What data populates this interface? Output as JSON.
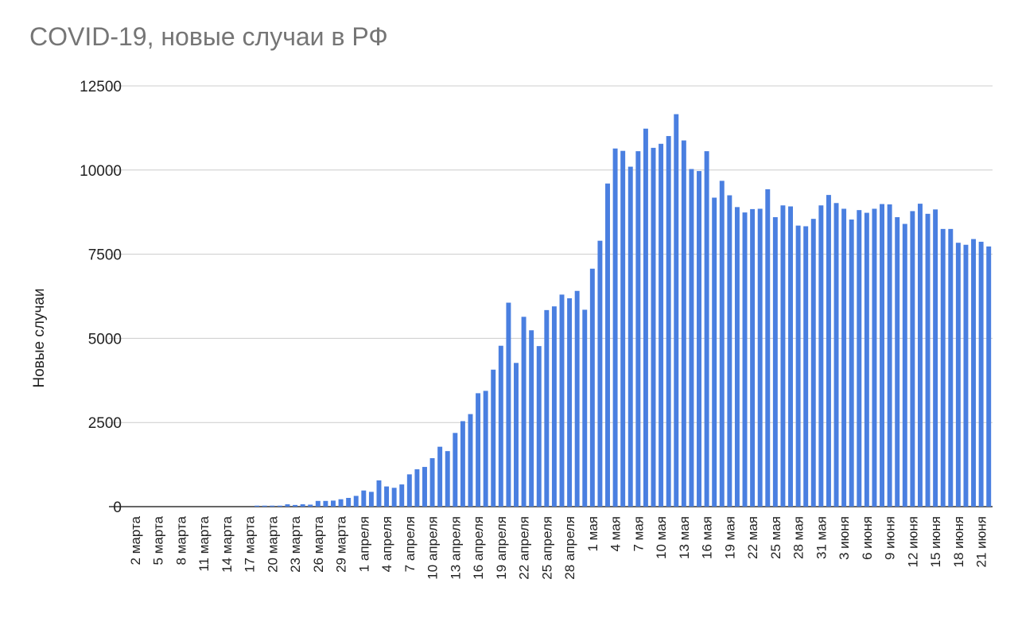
{
  "chart_data": {
    "type": "bar",
    "title": "COVID-19, новые случаи в РФ",
    "xlabel": "",
    "ylabel": "Новые случаи",
    "ylim": [
      0,
      12500
    ],
    "yticks": [
      0,
      2500,
      5000,
      7500,
      10000,
      12500
    ],
    "grid": true,
    "bar_color": "#4a7fe0",
    "categories": [
      "2 марта",
      "3 марта",
      "4 марта",
      "5 марта",
      "6 марта",
      "7 марта",
      "8 марта",
      "9 марта",
      "10 марта",
      "11 марта",
      "12 марта",
      "13 марта",
      "14 марта",
      "15 марта",
      "16 марта",
      "17 марта",
      "18 марта",
      "19 марта",
      "20 марта",
      "21 марта",
      "22 марта",
      "23 марта",
      "24 марта",
      "25 марта",
      "26 марта",
      "27 марта",
      "28 марта",
      "29 марта",
      "30 марта",
      "31 марта",
      "1 апреля",
      "2 апреля",
      "3 апреля",
      "4 апреля",
      "5 апреля",
      "6 апреля",
      "7 апреля",
      "8 апреля",
      "9 апреля",
      "10 апреля",
      "11 апреля",
      "12 апреля",
      "13 апреля",
      "14 апреля",
      "15 апреля",
      "16 апреля",
      "17 апреля",
      "18 апреля",
      "19 апреля",
      "20 апреля",
      "21 апреля",
      "22 апреля",
      "23 апреля",
      "24 апреля",
      "25 апреля",
      "26 апреля",
      "27 апреля",
      "28 апреля",
      "29 апреля",
      "30 апреля",
      "1 мая",
      "2 мая",
      "3 мая",
      "4 мая",
      "5 мая",
      "6 мая",
      "7 мая",
      "8 мая",
      "9 мая",
      "10 мая",
      "11 мая",
      "12 мая",
      "13 мая",
      "14 мая",
      "15 мая",
      "16 мая",
      "17 мая",
      "18 мая",
      "19 мая",
      "20 мая",
      "21 мая",
      "22 мая",
      "23 мая",
      "24 мая",
      "25 мая",
      "26 мая",
      "27 мая",
      "28 мая",
      "29 мая",
      "30 мая",
      "31 мая",
      "1 июня",
      "2 июня",
      "3 июня",
      "4 июня",
      "5 июня",
      "6 июня",
      "7 июня",
      "8 июня",
      "9 июня",
      "10 июня",
      "11 июня",
      "12 июня",
      "13 июня",
      "14 июня",
      "15 июня",
      "16 июня",
      "17 июня",
      "18 июня",
      "19 июня",
      "20 июня",
      "21 июня",
      "22 июня"
    ],
    "values": [
      0,
      0,
      0,
      0,
      0,
      0,
      0,
      0,
      0,
      0,
      0,
      0,
      0,
      0,
      0,
      0,
      30,
      30,
      30,
      30,
      70,
      50,
      70,
      60,
      170,
      170,
      180,
      220,
      260,
      320,
      480,
      440,
      780,
      600,
      560,
      660,
      960,
      1110,
      1180,
      1440,
      1780,
      1650,
      2190,
      2540,
      2750,
      3370,
      3440,
      4070,
      4780,
      6060,
      4270,
      5640,
      5240,
      4770,
      5840,
      5950,
      6300,
      6190,
      6410,
      5850,
      7070,
      7900,
      9600,
      10640,
      10570,
      10100,
      10560,
      11230,
      10660,
      10780,
      11010,
      11660,
      10880,
      10030,
      9970,
      10560,
      9180,
      9680,
      9250,
      8900,
      8740,
      8840,
      8850,
      9430,
      8600,
      8950,
      8920,
      8350,
      8330,
      8550,
      8950,
      9260,
      9020,
      8850,
      8530,
      8810,
      8730,
      8850,
      8990,
      8980,
      8600,
      8400,
      8780,
      9000,
      8700,
      8830,
      8250,
      8250,
      7840,
      7780,
      7950,
      7870,
      7730
    ],
    "xtick_every": 3
  }
}
